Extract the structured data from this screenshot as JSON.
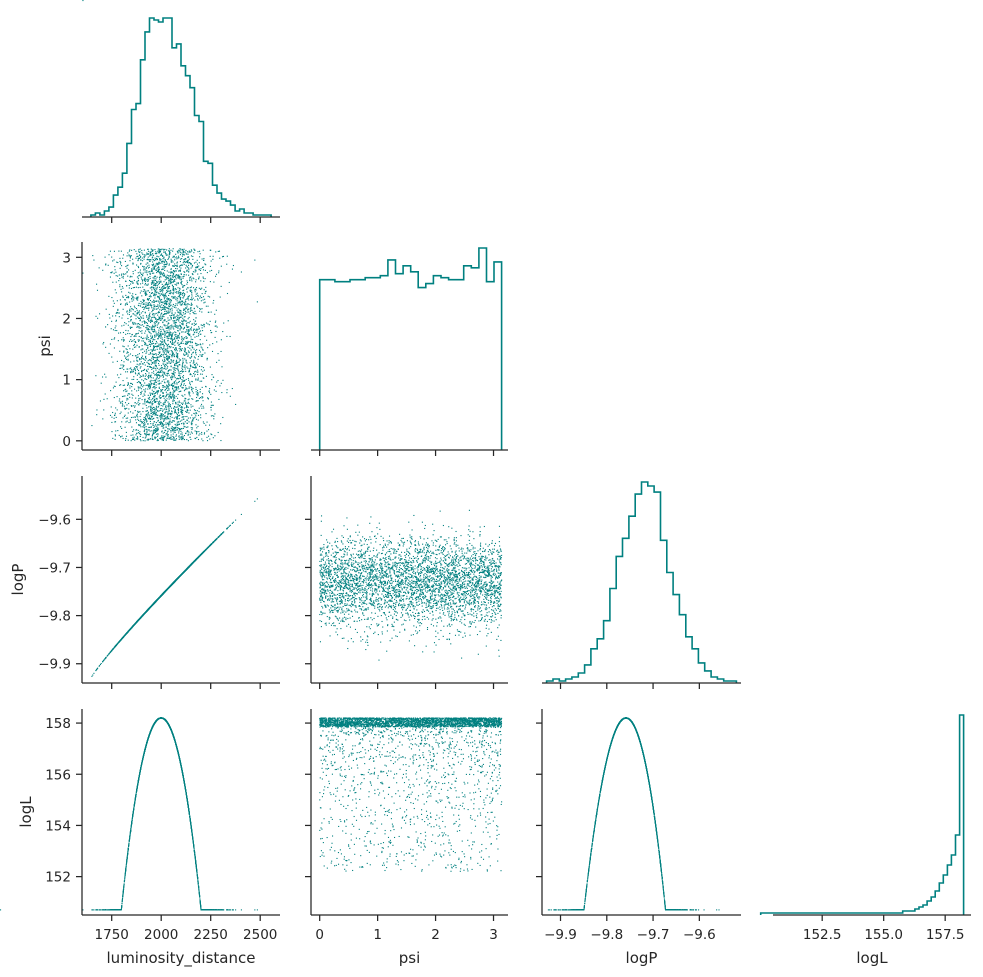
{
  "chart_data": {
    "type": "scatter",
    "subtype": "corner-plot",
    "color": "#008080",
    "n_samples": 4000,
    "variables": [
      {
        "name": "luminosity_distance",
        "label": "luminosity_distance",
        "range": [
          1600,
          2600
        ],
        "ticks": [
          1750,
          2000,
          2250,
          2500
        ],
        "tick_labels": [
          "1750",
          "2000",
          "2250",
          "2500"
        ]
      },
      {
        "name": "psi",
        "label": "psi",
        "range": [
          -0.15,
          3.25
        ],
        "ticks": [
          0,
          1,
          2,
          3
        ],
        "tick_labels": [
          "0",
          "1",
          "2",
          "3"
        ]
      },
      {
        "name": "logP",
        "label": "logP",
        "range": [
          -9.94,
          -9.51
        ],
        "ticks": [
          -9.9,
          -9.8,
          -9.7,
          -9.6
        ],
        "tick_labels": [
          "−9.9",
          "−9.8",
          "−9.7",
          "−9.6"
        ]
      },
      {
        "name": "logL",
        "label": "logL",
        "range": [
          150.5,
          158.55
        ],
        "ticks": [
          152,
          154,
          156,
          158
        ],
        "tick_labels": [
          "152",
          "154",
          "156",
          "158"
        ],
        "diag_ticks": [
          152.5,
          155.0,
          157.5
        ],
        "diag_tick_labels": [
          "152.5",
          "155.0",
          "157.5"
        ]
      }
    ],
    "hist_counts": [
      {
        "edges": [
          1645,
          2555
        ],
        "counts": [
          1,
          2,
          1,
          3,
          5,
          11,
          15,
          22,
          37,
          54,
          57,
          79,
          93,
          100,
          99,
          98,
          100,
          100,
          85,
          87,
          76,
          71,
          65,
          51,
          48,
          28,
          27,
          16,
          12,
          9,
          8,
          6,
          3,
          4,
          2,
          2,
          1,
          1,
          1,
          1
        ]
      },
      {
        "edges": [
          0.0,
          3.14
        ],
        "counts": [
          86,
          86,
          85,
          85,
          86,
          86,
          87,
          87,
          88,
          96,
          89,
          93,
          90,
          82,
          84,
          88,
          87,
          86,
          86,
          93,
          92,
          102,
          85,
          95
        ]
      },
      {
        "edges": [
          -9.93,
          -9.52
        ],
        "counts": [
          1,
          2,
          1,
          2,
          3,
          5,
          9,
          17,
          22,
          31,
          47,
          63,
          72,
          83,
          94,
          100,
          98,
          95,
          71,
          55,
          44,
          34,
          23,
          17,
          10,
          6,
          3,
          2,
          1,
          1
        ]
      },
      {
        "edges": [
          150.0,
          158.25
        ],
        "counts": [
          1,
          1,
          1,
          1,
          1,
          1,
          1,
          1,
          1,
          1,
          1,
          1,
          1,
          1,
          1,
          1,
          1,
          1,
          1,
          1,
          1,
          1,
          1,
          1,
          1,
          1,
          1,
          1,
          1,
          1,
          1,
          1,
          1,
          1,
          1,
          2,
          2,
          2,
          3,
          4,
          5,
          7,
          9,
          12,
          16,
          20,
          25,
          30,
          40,
          100
        ]
      }
    ],
    "relationships": {
      "logP_vs_luminosity_distance": "tight monotonic curve from (1645, -9.93) to (2555, -9.53)",
      "logL_vs_luminosity_distance": "parabola, max 158.2 at 2000, falls to ~150.7 at 2560",
      "logL_vs_logP": "parabola, max 158.2 at -9.73, falls to ~150.7 at -9.51",
      "psi": "approximately uniform on [0, 3.14]"
    },
    "grid": false,
    "legend": "none"
  }
}
